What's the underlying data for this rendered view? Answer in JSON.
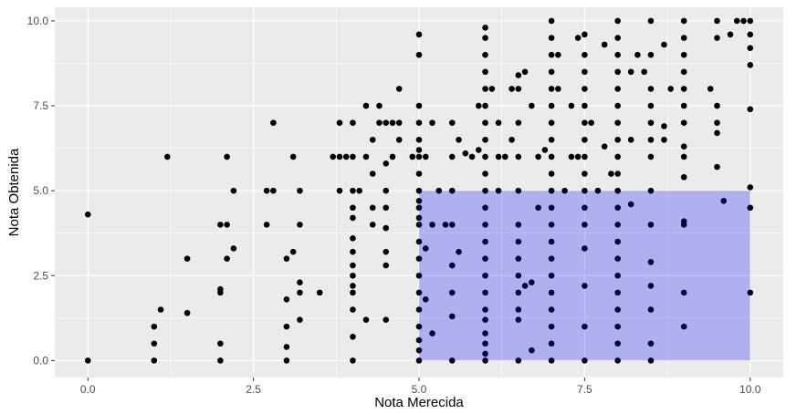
{
  "chart_data": {
    "type": "scatter",
    "title": "",
    "xlabel": "Nota Merecida",
    "ylabel": "Nota Obtenida",
    "xlim": [
      -0.5,
      10.5
    ],
    "ylim": [
      -0.5,
      10.4
    ],
    "x_ticks": [
      0.0,
      2.5,
      5.0,
      7.5,
      10.0
    ],
    "x_tick_labels": [
      "0.0",
      "2.5",
      "5.0",
      "7.5",
      "10.0"
    ],
    "y_ticks": [
      0.0,
      2.5,
      5.0,
      7.5,
      10.0
    ],
    "y_tick_labels": [
      "0.0",
      "2.5",
      "5.0",
      "7.5",
      "10.0"
    ],
    "grid": true,
    "legend": "none",
    "colors": {
      "panel": "#ebebeb",
      "grid": "#ffffff",
      "points": "#000000",
      "highlight": "#0000ff"
    },
    "highlight_region": {
      "x": [
        5.0,
        10.0
      ],
      "y": [
        0.0,
        5.0
      ],
      "opacity": 0.25
    },
    "points": [
      [
        0,
        0
      ],
      [
        0,
        4.3
      ],
      [
        1,
        0
      ],
      [
        1,
        0.5
      ],
      [
        1,
        1
      ],
      [
        1.1,
        1.5
      ],
      [
        1.2,
        6
      ],
      [
        1.5,
        1.4
      ],
      [
        1.5,
        3
      ],
      [
        2,
        0
      ],
      [
        2,
        0.5
      ],
      [
        2,
        2
      ],
      [
        2,
        2.1
      ],
      [
        2,
        4
      ],
      [
        2.1,
        3
      ],
      [
        2.1,
        4
      ],
      [
        2.1,
        6
      ],
      [
        2.2,
        3.3
      ],
      [
        2.2,
        5
      ],
      [
        2.7,
        4
      ],
      [
        2.7,
        5
      ],
      [
        2.8,
        5
      ],
      [
        2.8,
        7
      ],
      [
        3,
        0
      ],
      [
        3,
        0.4
      ],
      [
        3,
        1
      ],
      [
        3,
        1.8
      ],
      [
        3,
        3
      ],
      [
        3.1,
        3.2
      ],
      [
        3.1,
        6
      ],
      [
        3.2,
        1.2
      ],
      [
        3.2,
        2
      ],
      [
        3.2,
        2.3
      ],
      [
        3.2,
        4
      ],
      [
        3.2,
        5
      ],
      [
        3.5,
        2
      ],
      [
        3.7,
        6
      ],
      [
        3.8,
        5
      ],
      [
        3.8,
        6
      ],
      [
        3.8,
        7
      ],
      [
        3.9,
        6
      ],
      [
        4,
        0
      ],
      [
        4,
        0.7
      ],
      [
        4,
        1.5
      ],
      [
        4,
        2
      ],
      [
        4,
        2.2
      ],
      [
        4,
        2.5
      ],
      [
        4,
        2.8
      ],
      [
        4,
        3.2
      ],
      [
        4,
        3.6
      ],
      [
        4,
        4.2
      ],
      [
        4,
        4.5
      ],
      [
        4,
        5
      ],
      [
        4,
        6
      ],
      [
        4,
        7
      ],
      [
        4.1,
        5
      ],
      [
        4.2,
        6
      ],
      [
        4.2,
        7.5
      ],
      [
        4.2,
        1.2
      ],
      [
        4.3,
        4
      ],
      [
        4.3,
        4.5
      ],
      [
        4.3,
        5.5
      ],
      [
        4.3,
        6.5
      ],
      [
        4.4,
        7
      ],
      [
        4.4,
        7.5
      ],
      [
        4.5,
        1.2
      ],
      [
        4.5,
        2.8
      ],
      [
        4.5,
        3.2
      ],
      [
        4.5,
        3.9
      ],
      [
        4.5,
        4.5
      ],
      [
        4.5,
        5
      ],
      [
        4.5,
        5.8
      ],
      [
        4.5,
        7
      ],
      [
        4.6,
        6
      ],
      [
        4.6,
        7
      ],
      [
        4.7,
        6.5
      ],
      [
        4.7,
        8
      ],
      [
        4.7,
        7
      ],
      [
        4.9,
        6
      ],
      [
        5,
        0
      ],
      [
        5,
        0.3
      ],
      [
        5,
        0.6
      ],
      [
        5,
        1
      ],
      [
        5,
        1.5
      ],
      [
        5,
        2
      ],
      [
        5,
        2.5
      ],
      [
        5,
        3
      ],
      [
        5,
        3.5
      ],
      [
        5,
        4
      ],
      [
        5,
        4.5
      ],
      [
        5,
        5
      ],
      [
        5,
        5.5
      ],
      [
        5,
        6
      ],
      [
        5,
        6.5
      ],
      [
        5,
        7
      ],
      [
        5,
        7.5
      ],
      [
        5,
        9
      ],
      [
        5,
        9.6
      ],
      [
        5,
        6.2
      ],
      [
        5,
        4.7
      ],
      [
        5,
        4.2
      ],
      [
        5.1,
        1.8
      ],
      [
        5.1,
        3.3
      ],
      [
        5.1,
        6
      ],
      [
        5.2,
        4
      ],
      [
        5.2,
        0.8
      ],
      [
        5.2,
        7
      ],
      [
        5.3,
        5
      ],
      [
        5.4,
        4
      ],
      [
        5.5,
        0
      ],
      [
        5.5,
        1.3
      ],
      [
        5.5,
        2
      ],
      [
        5.5,
        2.8
      ],
      [
        5.5,
        4
      ],
      [
        5.5,
        5
      ],
      [
        5.5,
        6
      ],
      [
        5.5,
        7
      ],
      [
        5.6,
        6.5
      ],
      [
        5.6,
        3.2
      ],
      [
        5.7,
        6.1
      ],
      [
        5.8,
        6
      ],
      [
        5.9,
        7.5
      ],
      [
        5.9,
        6.2
      ],
      [
        6,
        0
      ],
      [
        6,
        0.2
      ],
      [
        6,
        0.5
      ],
      [
        6,
        0.8
      ],
      [
        6,
        1.2
      ],
      [
        6,
        1.5
      ],
      [
        6,
        2
      ],
      [
        6,
        2.5
      ],
      [
        6,
        3
      ],
      [
        6,
        3.5
      ],
      [
        6,
        4
      ],
      [
        6,
        4.5
      ],
      [
        6,
        5
      ],
      [
        6,
        5.5
      ],
      [
        6,
        6
      ],
      [
        6,
        6.5
      ],
      [
        6,
        7
      ],
      [
        6,
        7.5
      ],
      [
        6,
        8
      ],
      [
        6,
        8.5
      ],
      [
        6,
        9
      ],
      [
        6,
        9.5
      ],
      [
        6,
        9.8
      ],
      [
        6.1,
        8
      ],
      [
        6.2,
        5
      ],
      [
        6.2,
        7
      ],
      [
        6.2,
        6
      ],
      [
        6.3,
        6
      ],
      [
        6.4,
        6.5
      ],
      [
        6.4,
        8
      ],
      [
        6.5,
        0
      ],
      [
        6.5,
        1.2
      ],
      [
        6.5,
        1.5
      ],
      [
        6.5,
        2
      ],
      [
        6.5,
        2.5
      ],
      [
        6.5,
        3
      ],
      [
        6.5,
        3.5
      ],
      [
        6.5,
        4
      ],
      [
        6.5,
        5
      ],
      [
        6.5,
        6
      ],
      [
        6.5,
        7
      ],
      [
        6.5,
        8
      ],
      [
        6.5,
        8.4
      ],
      [
        6.6,
        2.2
      ],
      [
        6.6,
        8.5
      ],
      [
        6.7,
        0.3
      ],
      [
        6.7,
        2.3
      ],
      [
        6.7,
        7.5
      ],
      [
        6.8,
        4.5
      ],
      [
        6.8,
        6
      ],
      [
        6.9,
        6.2
      ],
      [
        7,
        0
      ],
      [
        7,
        0.5
      ],
      [
        7,
        1
      ],
      [
        7,
        1.5
      ],
      [
        7,
        2
      ],
      [
        7,
        2.5
      ],
      [
        7,
        3
      ],
      [
        7,
        3.5
      ],
      [
        7,
        4
      ],
      [
        7,
        4.5
      ],
      [
        7,
        5
      ],
      [
        7,
        5.5
      ],
      [
        7,
        6
      ],
      [
        7,
        6.5
      ],
      [
        7,
        7
      ],
      [
        7,
        7.5
      ],
      [
        7,
        8
      ],
      [
        7,
        8.5
      ],
      [
        7,
        9
      ],
      [
        7,
        9.5
      ],
      [
        7,
        10
      ],
      [
        7.1,
        9
      ],
      [
        7.1,
        8
      ],
      [
        7.2,
        5
      ],
      [
        7.3,
        6
      ],
      [
        7.3,
        7.5
      ],
      [
        7.4,
        9.5
      ],
      [
        7.4,
        6
      ],
      [
        7.5,
        0
      ],
      [
        7.5,
        1
      ],
      [
        7.5,
        2.2
      ],
      [
        7.5,
        3.3
      ],
      [
        7.5,
        4
      ],
      [
        7.5,
        4.5
      ],
      [
        7.5,
        5
      ],
      [
        7.5,
        5.5
      ],
      [
        7.5,
        6
      ],
      [
        7.5,
        6.5
      ],
      [
        7.5,
        7
      ],
      [
        7.5,
        7.5
      ],
      [
        7.5,
        8
      ],
      [
        7.5,
        8.5
      ],
      [
        7.5,
        9
      ],
      [
        7.5,
        9.6
      ],
      [
        7.6,
        7
      ],
      [
        7.7,
        5
      ],
      [
        7.8,
        6.3
      ],
      [
        7.8,
        9.3
      ],
      [
        7.9,
        5.5
      ],
      [
        8,
        0
      ],
      [
        8,
        0.5
      ],
      [
        8,
        1
      ],
      [
        8,
        1.5
      ],
      [
        8,
        2
      ],
      [
        8,
        2.5
      ],
      [
        8,
        3
      ],
      [
        8,
        3.5
      ],
      [
        8,
        4
      ],
      [
        8,
        4.5
      ],
      [
        8,
        5
      ],
      [
        8,
        5.5
      ],
      [
        8,
        6
      ],
      [
        8,
        6.5
      ],
      [
        8,
        7
      ],
      [
        8,
        7.5
      ],
      [
        8,
        8
      ],
      [
        8,
        8.5
      ],
      [
        8,
        9
      ],
      [
        8,
        9.5
      ],
      [
        8,
        10
      ],
      [
        8.2,
        4.6
      ],
      [
        8.2,
        6.5
      ],
      [
        8.2,
        8.5
      ],
      [
        8.3,
        9
      ],
      [
        8.4,
        8.5
      ],
      [
        8.5,
        0
      ],
      [
        8.5,
        0.5
      ],
      [
        8.5,
        1.5
      ],
      [
        8.5,
        2.2
      ],
      [
        8.5,
        2.9
      ],
      [
        8.5,
        4
      ],
      [
        8.5,
        5
      ],
      [
        8.5,
        6
      ],
      [
        8.5,
        6.5
      ],
      [
        8.5,
        7
      ],
      [
        8.5,
        7.5
      ],
      [
        8.5,
        8
      ],
      [
        8.5,
        9
      ],
      [
        8.5,
        10
      ],
      [
        8.7,
        6.5
      ],
      [
        8.7,
        6.9
      ],
      [
        8.7,
        9.3
      ],
      [
        8.8,
        8
      ],
      [
        9,
        1
      ],
      [
        9,
        2
      ],
      [
        9,
        4
      ],
      [
        9,
        4.1
      ],
      [
        9,
        5.4
      ],
      [
        9,
        6
      ],
      [
        9,
        6.3
      ],
      [
        9,
        7
      ],
      [
        9,
        7.5
      ],
      [
        9,
        8
      ],
      [
        9,
        8.5
      ],
      [
        9,
        9
      ],
      [
        9,
        9.5
      ],
      [
        9,
        10
      ],
      [
        9.4,
        8
      ],
      [
        9.5,
        5.7
      ],
      [
        9.5,
        6.7
      ],
      [
        9.5,
        7
      ],
      [
        9.5,
        7.5
      ],
      [
        9.5,
        9.5
      ],
      [
        9.5,
        10
      ],
      [
        9.6,
        4.7
      ],
      [
        9.7,
        9.6
      ],
      [
        9.8,
        10
      ],
      [
        9.9,
        10
      ],
      [
        10,
        2
      ],
      [
        10,
        4.5
      ],
      [
        10,
        5.1
      ],
      [
        10,
        7.4
      ],
      [
        10,
        8.7
      ],
      [
        10,
        9.2
      ],
      [
        10,
        9.6
      ],
      [
        10,
        10
      ]
    ]
  }
}
